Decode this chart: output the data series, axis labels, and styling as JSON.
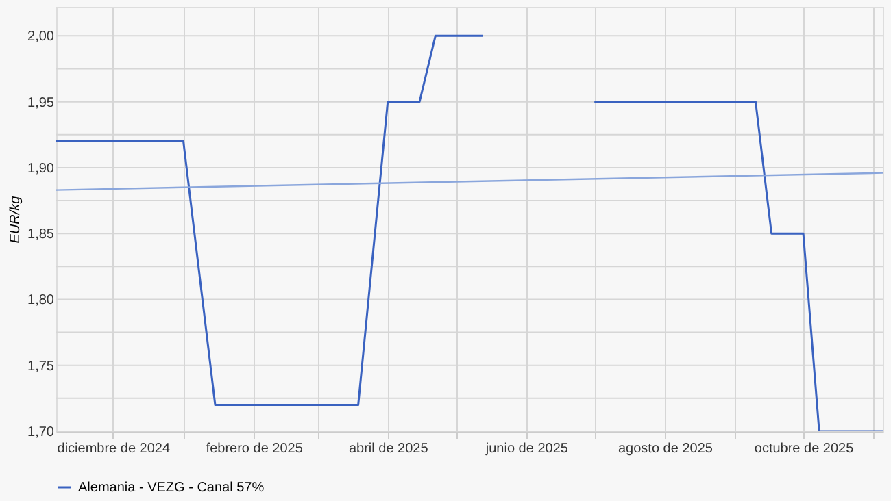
{
  "chart_data": {
    "type": "line",
    "ylabel": "EUR/kg",
    "xlim": [
      "2024-11-06",
      "2025-11-05"
    ],
    "xticks": [
      {
        "value": "2024-12-01",
        "label": "diciembre de 2024"
      },
      {
        "value": "2025-01-01",
        "label": null
      },
      {
        "value": "2025-02-01",
        "label": "febrero de 2025"
      },
      {
        "value": "2025-03-01",
        "label": null
      },
      {
        "value": "2025-04-01",
        "label": "abril de 2025"
      },
      {
        "value": "2025-05-01",
        "label": null
      },
      {
        "value": "2025-06-01",
        "label": "junio de 2025"
      },
      {
        "value": "2025-07-01",
        "label": null
      },
      {
        "value": "2025-08-01",
        "label": "agosto de 2025"
      },
      {
        "value": "2025-09-01",
        "label": null
      },
      {
        "value": "2025-10-01",
        "label": "octubre de 2025"
      },
      {
        "value": "2025-11-01",
        "label": null
      }
    ],
    "ylim": [
      1.7,
      2.022
    ],
    "yticks": [
      {
        "value": 1.7,
        "label": "1,70"
      },
      {
        "value": 1.725,
        "label": null
      },
      {
        "value": 1.75,
        "label": "1,75"
      },
      {
        "value": 1.775,
        "label": null
      },
      {
        "value": 1.8,
        "label": "1,80"
      },
      {
        "value": 1.825,
        "label": null
      },
      {
        "value": 1.85,
        "label": "1,85"
      },
      {
        "value": 1.875,
        "label": null
      },
      {
        "value": 1.9,
        "label": "1,90"
      },
      {
        "value": 1.925,
        "label": null
      },
      {
        "value": 1.95,
        "label": "1,95"
      },
      {
        "value": 1.975,
        "label": null
      },
      {
        "value": 2.0,
        "label": "2,00"
      }
    ],
    "grid": true,
    "legend": "bottom",
    "marker": "none",
    "series": [
      {
        "name": "Alemania - VEZG - Canal 57%",
        "color": "#3a62c0",
        "x": [
          "2024-11-06",
          "2025-01-01",
          "2025-01-15",
          "2025-03-19",
          "2025-04-01",
          "2025-04-15",
          "2025-04-22",
          "2025-05-13",
          "2025-06-01",
          "2025-07-01",
          "2025-09-10",
          "2025-09-17",
          "2025-10-01",
          "2025-10-08",
          "2025-11-05"
        ],
        "values": [
          1.92,
          1.92,
          1.72,
          1.72,
          1.95,
          1.95,
          2.0,
          2.0,
          null,
          1.95,
          1.95,
          1.85,
          1.85,
          1.7,
          1.7
        ]
      },
      {
        "color": "#8aa6dc",
        "x": [
          "2024-11-06",
          "2025-11-05"
        ],
        "values": [
          1.883,
          1.896
        ]
      }
    ]
  }
}
